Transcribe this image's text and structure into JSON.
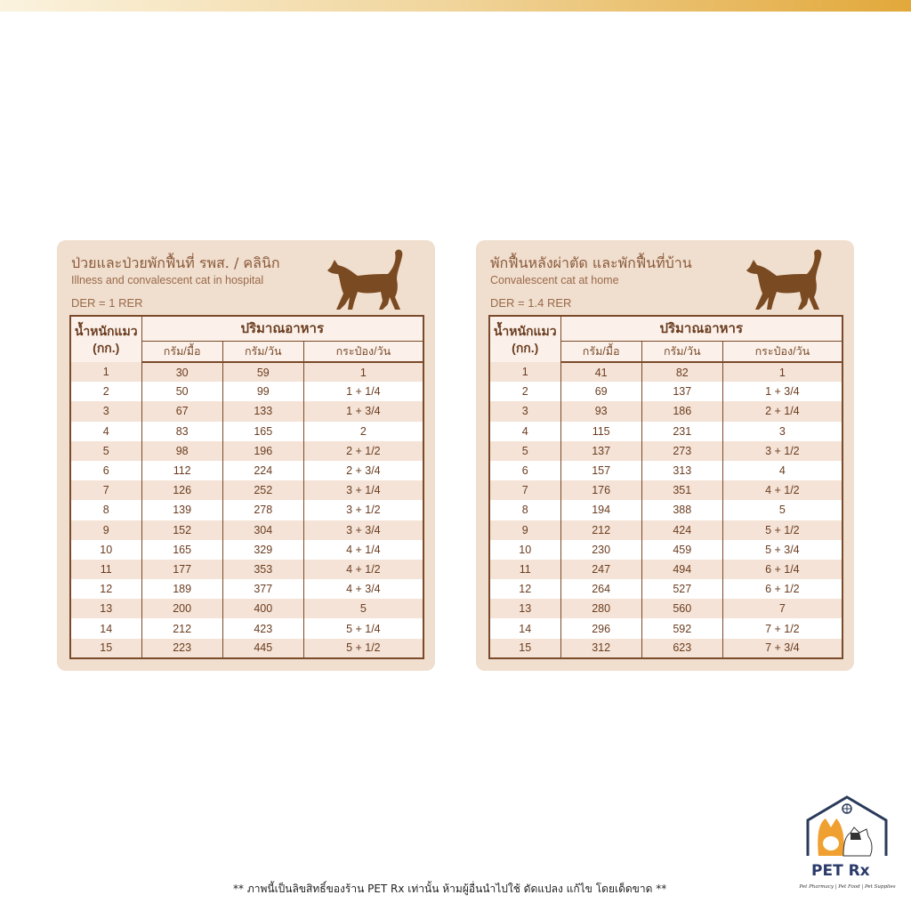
{
  "colors": {
    "brown": "#7a4a2a",
    "card": "#f0dece",
    "row_tint": "#f4e3d6"
  },
  "tables": [
    {
      "title": "ป่วยและป่วยพักฟื้นที่ รพส. / คลินิก",
      "subtitle": "Illness and convalescent cat in hospital",
      "der": "DER = 1 RER",
      "header": {
        "weight": "น้ำหนักแมว",
        "weight_unit": "(กก.)",
        "amount": "ปริมาณอาหาร",
        "per_meal": "กรัม/มื้อ",
        "per_day": "กรัม/วัน",
        "cans": "กระป๋อง/วัน"
      },
      "rows": [
        [
          "1",
          "30",
          "59",
          "1"
        ],
        [
          "2",
          "50",
          "99",
          "1 + 1/4"
        ],
        [
          "3",
          "67",
          "133",
          "1 + 3/4"
        ],
        [
          "4",
          "83",
          "165",
          "2"
        ],
        [
          "5",
          "98",
          "196",
          "2 + 1/2"
        ],
        [
          "6",
          "112",
          "224",
          "2 + 3/4"
        ],
        [
          "7",
          "126",
          "252",
          "3 + 1/4"
        ],
        [
          "8",
          "139",
          "278",
          "3 + 1/2"
        ],
        [
          "9",
          "152",
          "304",
          "3 + 3/4"
        ],
        [
          "10",
          "165",
          "329",
          "4 + 1/4"
        ],
        [
          "11",
          "177",
          "353",
          "4 + 1/2"
        ],
        [
          "12",
          "189",
          "377",
          "4 + 3/4"
        ],
        [
          "13",
          "200",
          "400",
          "5"
        ],
        [
          "14",
          "212",
          "423",
          "5 + 1/4"
        ],
        [
          "15",
          "223",
          "445",
          "5 + 1/2"
        ]
      ]
    },
    {
      "title": "พักฟื้นหลังผ่าตัด และพักฟื้นที่บ้าน",
      "subtitle": "Convalescent  cat at home",
      "der": "DER = 1.4 RER",
      "header": {
        "weight": "น้ำหนักแมว",
        "weight_unit": "(กก.)",
        "amount": "ปริมาณอาหาร",
        "per_meal": "กรัม/มื้อ",
        "per_day": "กรัม/วัน",
        "cans": "กระป๋อง/วัน"
      },
      "rows": [
        [
          "1",
          "41",
          "82",
          "1"
        ],
        [
          "2",
          "69",
          "137",
          "1 + 3/4"
        ],
        [
          "3",
          "93",
          "186",
          "2 + 1/4"
        ],
        [
          "4",
          "115",
          "231",
          "3"
        ],
        [
          "5",
          "137",
          "273",
          "3 + 1/2"
        ],
        [
          "6",
          "157",
          "313",
          "4"
        ],
        [
          "7",
          "176",
          "351",
          "4 + 1/2"
        ],
        [
          "8",
          "194",
          "388",
          "5"
        ],
        [
          "9",
          "212",
          "424",
          "5 + 1/2"
        ],
        [
          "10",
          "230",
          "459",
          "5 + 3/4"
        ],
        [
          "11",
          "247",
          "494",
          "6 + 1/4"
        ],
        [
          "12",
          "264",
          "527",
          "6 + 1/2"
        ],
        [
          "13",
          "280",
          "560",
          "7"
        ],
        [
          "14",
          "296",
          "592",
          "7 + 1/2"
        ],
        [
          "15",
          "312",
          "623",
          "7 + 3/4"
        ]
      ]
    }
  ],
  "footer": "** ภาพนี้เป็นลิขสิทธิ์ของร้าน PET Rx เท่านั้น ห้ามผู้อื่นนำไปใช้ ดัดแปลง แก้ไข โดยเด็ดขาด **",
  "logo": {
    "brand": "PET Rx",
    "tagline": "Pet Pharmacy | Pet Food | Pet Supplies"
  }
}
